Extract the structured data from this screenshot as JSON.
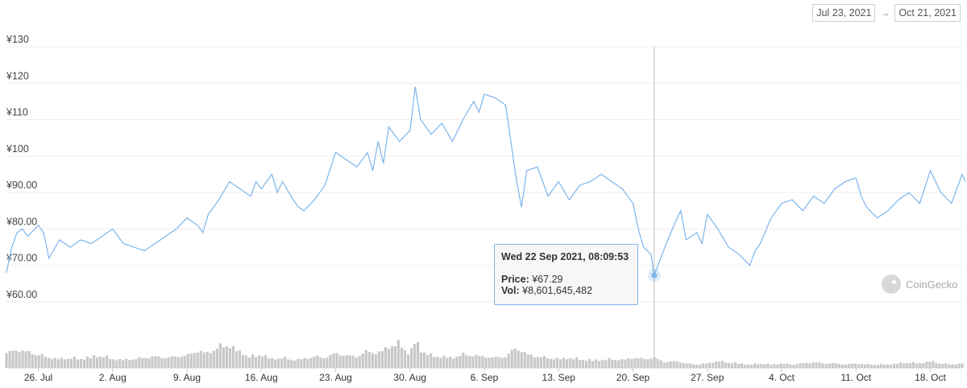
{
  "date_range": {
    "from": "Jul 23, 2021",
    "arrow": "→",
    "to": "Oct 21, 2021"
  },
  "tooltip": {
    "date": "Wed 22 Sep 2021, 08:09:53",
    "price_label": "Price:",
    "price_value": "¥67.29",
    "vol_label": "Vol:",
    "vol_value": "¥8,601,645,482"
  },
  "watermark": "CoinGecko",
  "colors": {
    "line": "#7cb5ec",
    "volume": "#c8c8c8",
    "grid": "#eeeeee",
    "crosshair": "#c0c0c0"
  },
  "chart_data": {
    "type": "line",
    "ylim": [
      60,
      130
    ],
    "yticks": [
      {
        "value": 130,
        "label": "¥130"
      },
      {
        "value": 120,
        "label": "¥120"
      },
      {
        "value": 110,
        "label": "¥110"
      },
      {
        "value": 100,
        "label": "¥100"
      },
      {
        "value": 90,
        "label": "¥90.00"
      },
      {
        "value": 80,
        "label": "¥80.00"
      },
      {
        "value": 70,
        "label": "¥70.00"
      },
      {
        "value": 60,
        "label": "¥60.00"
      }
    ],
    "xlim_days": [
      0,
      90
    ],
    "xticks": [
      {
        "day": 3,
        "label": "26. Jul"
      },
      {
        "day": 10,
        "label": "2. Aug"
      },
      {
        "day": 17,
        "label": "9. Aug"
      },
      {
        "day": 24,
        "label": "16. Aug"
      },
      {
        "day": 31,
        "label": "23. Aug"
      },
      {
        "day": 38,
        "label": "30. Aug"
      },
      {
        "day": 45,
        "label": "6. Sep"
      },
      {
        "day": 52,
        "label": "13. Sep"
      },
      {
        "day": 59,
        "label": "20. Sep"
      },
      {
        "day": 66,
        "label": "27. Sep"
      },
      {
        "day": 73,
        "label": "4. Oct"
      },
      {
        "day": 80,
        "label": "11. Oct"
      },
      {
        "day": 87,
        "label": "18. Oct"
      }
    ],
    "price": [
      [
        0,
        68
      ],
      [
        0.5,
        75
      ],
      [
        1,
        79
      ],
      [
        1.5,
        80
      ],
      [
        2,
        78
      ],
      [
        3,
        81
      ],
      [
        3.5,
        79
      ],
      [
        4,
        72
      ],
      [
        5,
        77
      ],
      [
        6,
        75
      ],
      [
        7,
        77
      ],
      [
        8,
        76
      ],
      [
        9,
        78
      ],
      [
        10,
        80
      ],
      [
        10.5,
        78
      ],
      [
        11,
        76
      ],
      [
        12,
        75
      ],
      [
        13,
        74
      ],
      [
        14,
        76
      ],
      [
        15,
        78
      ],
      [
        16,
        80
      ],
      [
        17,
        83
      ],
      [
        18,
        81
      ],
      [
        18.5,
        79
      ],
      [
        19,
        84
      ],
      [
        20,
        88
      ],
      [
        21,
        93
      ],
      [
        22,
        91
      ],
      [
        23,
        89
      ],
      [
        23.5,
        93
      ],
      [
        24,
        91
      ],
      [
        25,
        95
      ],
      [
        25.5,
        90
      ],
      [
        26,
        93
      ],
      [
        27,
        88
      ],
      [
        27.5,
        86
      ],
      [
        28,
        85
      ],
      [
        29,
        88
      ],
      [
        30,
        92
      ],
      [
        31,
        101
      ],
      [
        32,
        99
      ],
      [
        33,
        97
      ],
      [
        34,
        101
      ],
      [
        34.5,
        96
      ],
      [
        35,
        104
      ],
      [
        35.5,
        98
      ],
      [
        36,
        108
      ],
      [
        37,
        104
      ],
      [
        38,
        107
      ],
      [
        38.5,
        119
      ],
      [
        39,
        110
      ],
      [
        40,
        106
      ],
      [
        41,
        109
      ],
      [
        42,
        104
      ],
      [
        43,
        110
      ],
      [
        44,
        115
      ],
      [
        44.5,
        112
      ],
      [
        45,
        117
      ],
      [
        46,
        116
      ],
      [
        47,
        114
      ],
      [
        48,
        94
      ],
      [
        48.5,
        86
      ],
      [
        49,
        96
      ],
      [
        50,
        97
      ],
      [
        51,
        89
      ],
      [
        52,
        93
      ],
      [
        53,
        88
      ],
      [
        54,
        92
      ],
      [
        55,
        93
      ],
      [
        56,
        95
      ],
      [
        57,
        93
      ],
      [
        58,
        91
      ],
      [
        59,
        87
      ],
      [
        59.5,
        80
      ],
      [
        60,
        75
      ],
      [
        60.7,
        73
      ],
      [
        61,
        67.29
      ],
      [
        62,
        75
      ],
      [
        63,
        82
      ],
      [
        63.5,
        85
      ],
      [
        64,
        77
      ],
      [
        65,
        79
      ],
      [
        65.5,
        76
      ],
      [
        66,
        84
      ],
      [
        67,
        80
      ],
      [
        68,
        75
      ],
      [
        69,
        73
      ],
      [
        70,
        70
      ],
      [
        70.5,
        74
      ],
      [
        71,
        76
      ],
      [
        72,
        83
      ],
      [
        73,
        87
      ],
      [
        74,
        88
      ],
      [
        75,
        85
      ],
      [
        76,
        89
      ],
      [
        77,
        87
      ],
      [
        78,
        91
      ],
      [
        79,
        93
      ],
      [
        80,
        94
      ],
      [
        80.5,
        89
      ],
      [
        81,
        86
      ],
      [
        82,
        83
      ],
      [
        83,
        85
      ],
      [
        84,
        88
      ],
      [
        85,
        90
      ],
      [
        86,
        87
      ],
      [
        87,
        96
      ],
      [
        88,
        90
      ],
      [
        89,
        87
      ],
      [
        90,
        95
      ],
      [
        90.3,
        93
      ]
    ],
    "volume": [
      [
        0,
        1.3
      ],
      [
        1,
        1.6
      ],
      [
        2,
        1.4
      ],
      [
        3,
        1.2
      ],
      [
        4,
        0.9
      ],
      [
        5,
        0.8
      ],
      [
        6,
        0.9
      ],
      [
        7,
        0.8
      ],
      [
        8,
        1.0
      ],
      [
        9,
        1.1
      ],
      [
        10,
        0.8
      ],
      [
        11,
        0.7
      ],
      [
        12,
        0.8
      ],
      [
        13,
        0.9
      ],
      [
        14,
        1.0
      ],
      [
        15,
        0.9
      ],
      [
        16,
        1.0
      ],
      [
        17,
        1.1
      ],
      [
        18,
        1.5
      ],
      [
        19,
        1.3
      ],
      [
        20,
        1.9
      ],
      [
        21,
        2.0
      ],
      [
        22,
        1.4
      ],
      [
        23,
        1.0
      ],
      [
        24,
        1.2
      ],
      [
        25,
        0.8
      ],
      [
        26,
        0.9
      ],
      [
        27,
        0.7
      ],
      [
        28,
        0.8
      ],
      [
        29,
        1.0
      ],
      [
        30,
        0.9
      ],
      [
        31,
        1.3
      ],
      [
        32,
        1.1
      ],
      [
        33,
        1.0
      ],
      [
        34,
        1.5
      ],
      [
        35,
        1.3
      ],
      [
        36,
        1.9
      ],
      [
        37,
        2.2
      ],
      [
        38,
        1.2
      ],
      [
        38.5,
        2.6
      ],
      [
        39,
        1.6
      ],
      [
        40,
        1.1
      ],
      [
        41,
        1.0
      ],
      [
        42,
        0.9
      ],
      [
        43,
        1.2
      ],
      [
        44,
        1.1
      ],
      [
        45,
        1.0
      ],
      [
        46,
        0.9
      ],
      [
        47,
        1.0
      ],
      [
        48,
        1.8
      ],
      [
        49,
        1.2
      ],
      [
        50,
        1.0
      ],
      [
        51,
        0.9
      ],
      [
        52,
        0.8
      ],
      [
        53,
        0.9
      ],
      [
        54,
        0.8
      ],
      [
        55,
        0.7
      ],
      [
        56,
        0.7
      ],
      [
        57,
        0.8
      ],
      [
        58,
        0.7
      ],
      [
        59,
        0.9
      ],
      [
        60,
        0.8
      ],
      [
        61,
        0.9
      ],
      [
        62,
        0.5
      ],
      [
        63,
        0.6
      ],
      [
        64,
        0.4
      ],
      [
        65,
        0.3
      ],
      [
        66,
        0.4
      ],
      [
        67,
        0.6
      ],
      [
        68,
        0.5
      ],
      [
        69,
        0.4
      ],
      [
        70,
        0.3
      ],
      [
        71,
        0.4
      ],
      [
        72,
        0.3
      ],
      [
        73,
        0.4
      ],
      [
        74,
        0.3
      ],
      [
        75,
        0.4
      ],
      [
        76,
        0.5
      ],
      [
        77,
        0.4
      ],
      [
        78,
        0.4
      ],
      [
        79,
        0.3
      ],
      [
        80,
        0.4
      ],
      [
        81,
        0.3
      ],
      [
        82,
        0.3
      ],
      [
        83,
        0.3
      ],
      [
        84,
        0.4
      ],
      [
        85,
        0.5
      ],
      [
        86,
        0.4
      ],
      [
        87,
        0.6
      ],
      [
        88,
        0.4
      ],
      [
        89,
        0.3
      ],
      [
        90,
        0.4
      ]
    ],
    "hover": {
      "day": 61,
      "value": 67.29
    }
  }
}
